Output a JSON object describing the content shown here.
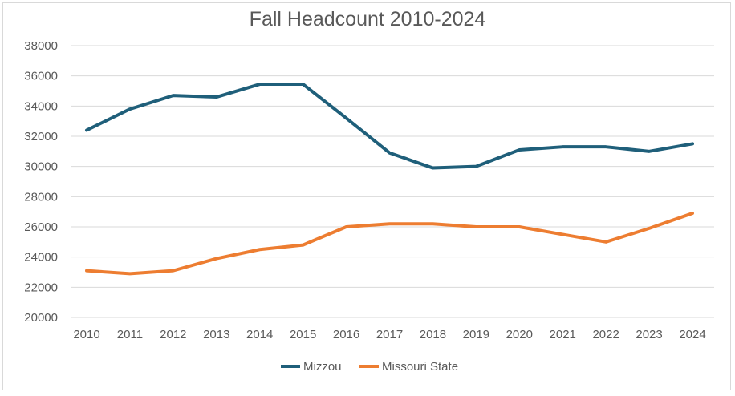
{
  "chart_data": {
    "type": "line",
    "title": "Fall Headcount 2010-2024",
    "xlabel": "",
    "ylabel": "",
    "x": [
      "2010",
      "2011",
      "2012",
      "2013",
      "2014",
      "2015",
      "2016",
      "2017",
      "2018",
      "2019",
      "2020",
      "2021",
      "2022",
      "2023",
      "2024"
    ],
    "ylim": [
      20000,
      38000
    ],
    "yticks": [
      20000,
      22000,
      24000,
      26000,
      28000,
      30000,
      32000,
      34000,
      36000,
      38000
    ],
    "grid": true,
    "legend_position": "bottom",
    "series": [
      {
        "name": "Mizzou",
        "color": "#1f5f7a",
        "values": [
          32400,
          33800,
          34700,
          34600,
          35450,
          35450,
          33200,
          30900,
          29900,
          30000,
          31100,
          31300,
          31300,
          31000,
          31500
        ]
      },
      {
        "name": "Missouri State",
        "color": "#ed7d31",
        "values": [
          23100,
          22900,
          23100,
          23900,
          24500,
          24800,
          26000,
          26200,
          26200,
          26000,
          26000,
          25500,
          25000,
          25900,
          26900
        ]
      }
    ]
  }
}
